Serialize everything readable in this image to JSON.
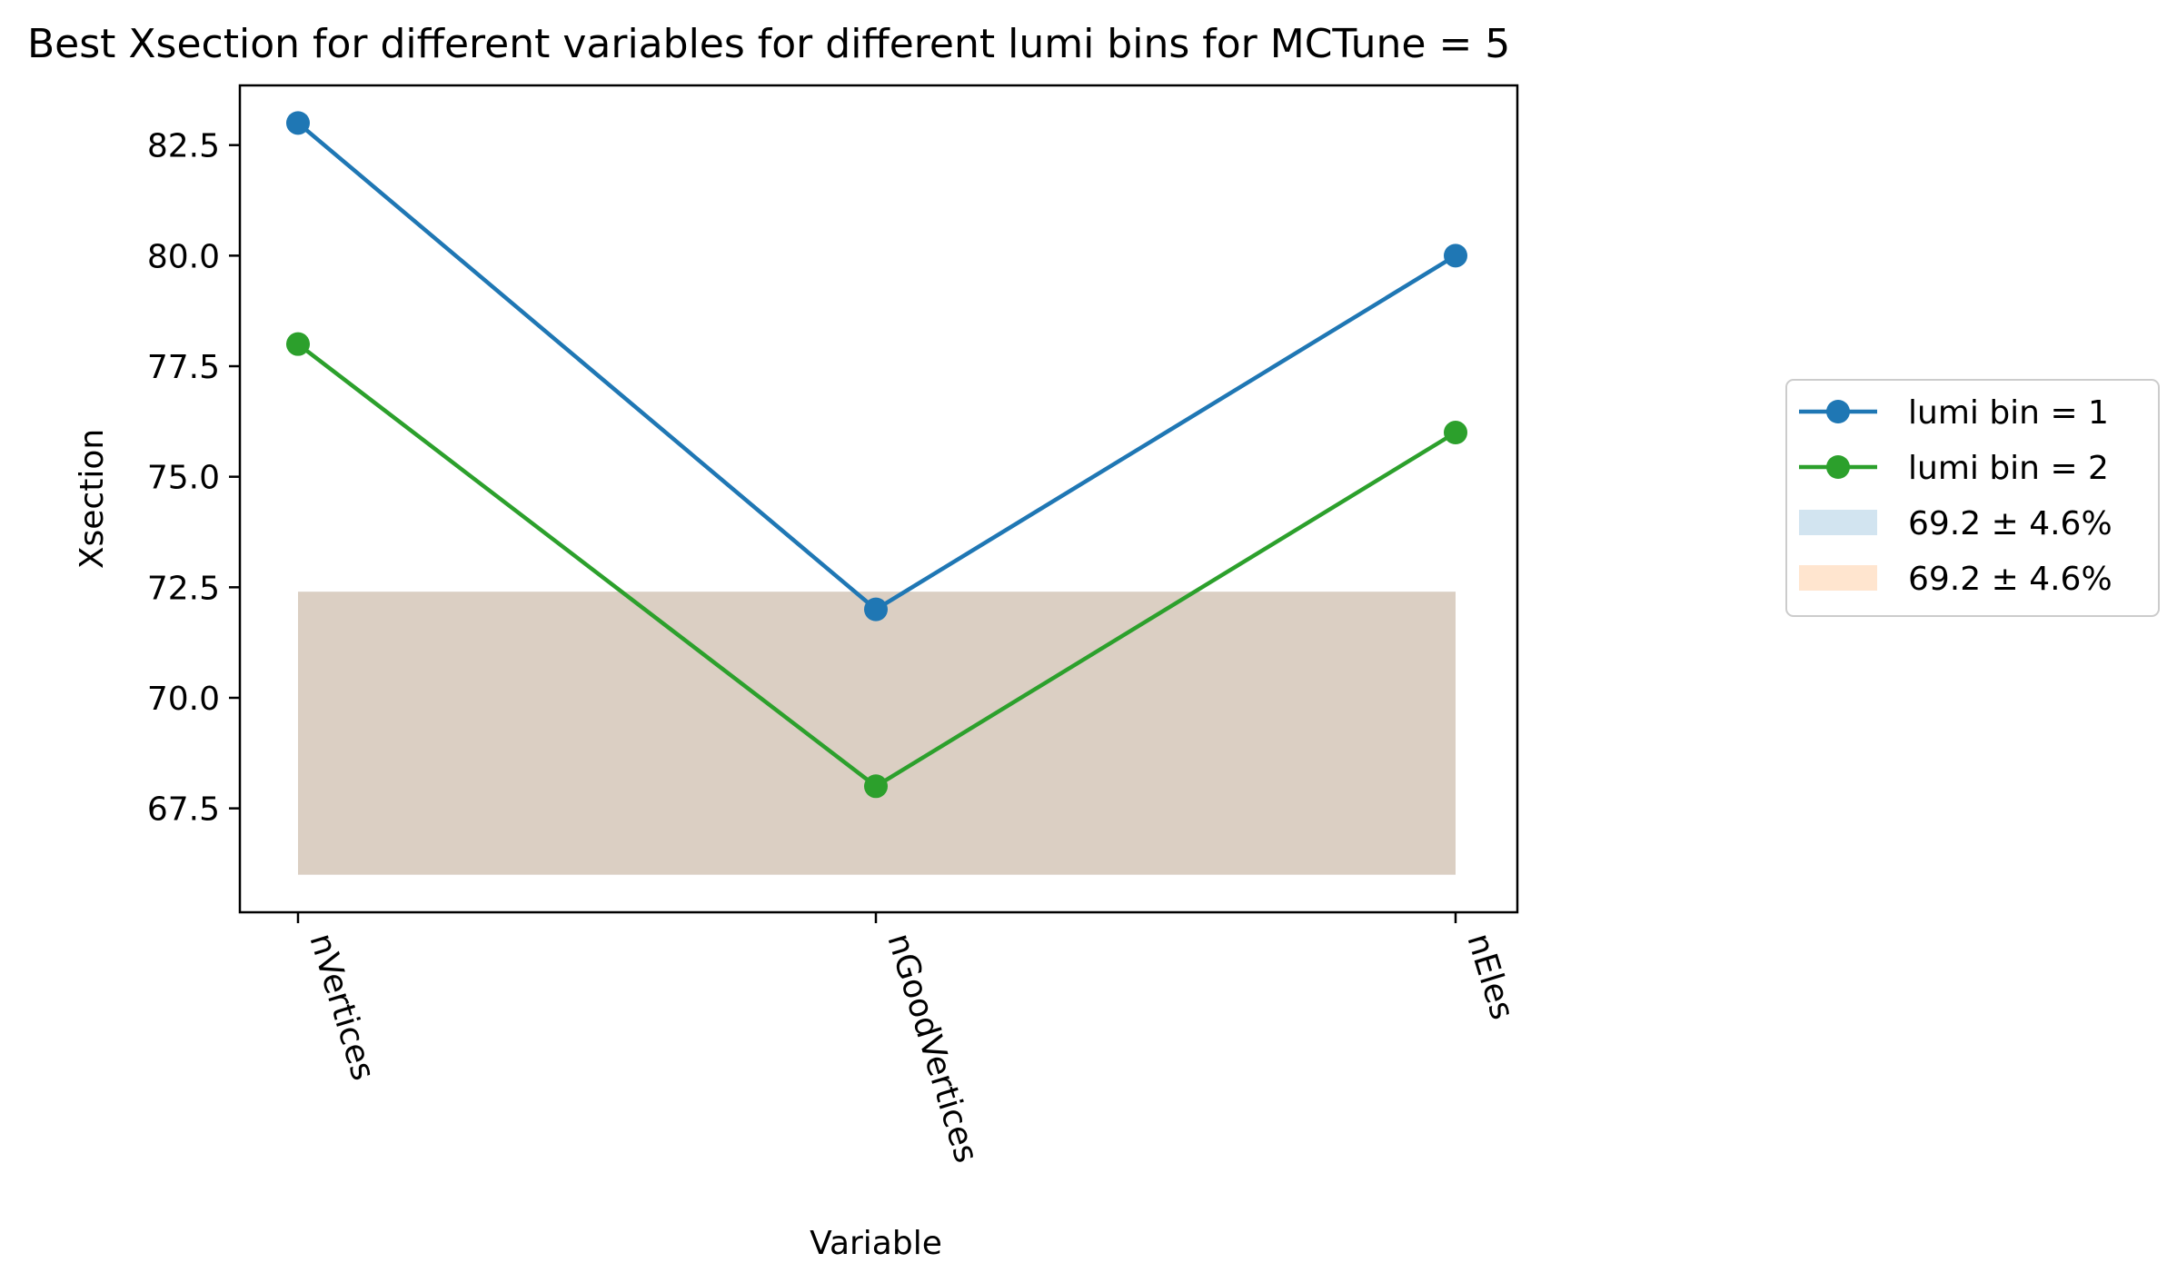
{
  "chart_data": {
    "type": "line",
    "title": "Best Xsection for different variables for different lumi bins for MCTune = 5",
    "xlabel": "Variable",
    "ylabel": "Xsection",
    "categories": [
      "nVertices",
      "nGoodVertices",
      "nEles"
    ],
    "ylim": [
      65.15,
      83.85
    ],
    "yticks": [
      "67.5",
      "70.0",
      "72.5",
      "75.0",
      "77.5",
      "80.0",
      "82.5"
    ],
    "series": [
      {
        "name": "lumi bin = 1",
        "values": [
          83,
          72,
          80
        ],
        "color": "#1f77b4",
        "marker": "circle"
      },
      {
        "name": "lumi bin = 2",
        "values": [
          78,
          68,
          76
        ],
        "color": "#2ca02c",
        "marker": "circle"
      }
    ],
    "bands": [
      {
        "name": "69.2 ± 4.6%",
        "y_range": [
          66.0,
          72.4
        ],
        "color": "#1f77b4",
        "alpha": 0.2
      },
      {
        "name": "69.2 ± 4.6%",
        "y_range": [
          66.0,
          72.4
        ],
        "color": "#ff7f0e",
        "alpha": 0.2
      }
    ],
    "legend_position": "outside-right",
    "grid": false
  }
}
